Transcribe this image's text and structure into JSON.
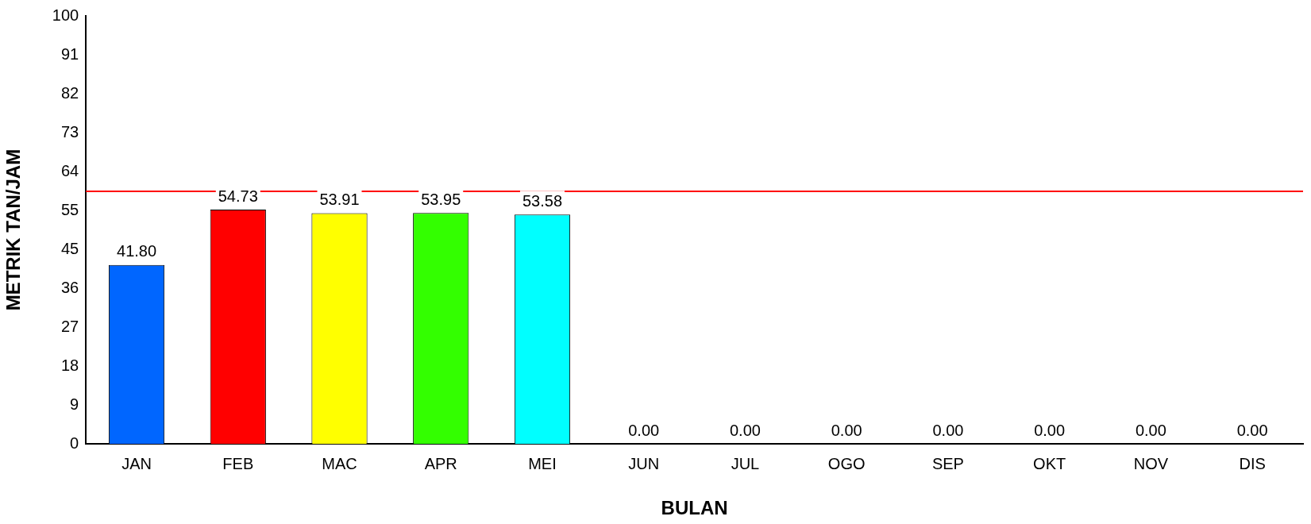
{
  "chart_data": {
    "type": "bar",
    "xlabel": "BULAN",
    "ylabel": "METRIK TAN/JAM",
    "categories": [
      "JAN",
      "FEB",
      "MAC",
      "APR",
      "MEI",
      "JUN",
      "JUL",
      "OGO",
      "SEP",
      "OKT",
      "NOV",
      "DIS"
    ],
    "values": [
      41.8,
      54.73,
      53.91,
      53.95,
      53.58,
      0,
      0,
      0,
      0,
      0,
      0,
      0
    ],
    "value_labels": [
      "41.80",
      "54.73",
      "53.91",
      "53.95",
      "53.58",
      "0.00",
      "0.00",
      "0.00",
      "0.00",
      "0.00",
      "0.00",
      "0.00"
    ],
    "colors": [
      "#0066ff",
      "#ff0000",
      "#ffff00",
      "#33ff00",
      "#00ffff",
      "#990099",
      "#663300",
      "#006600",
      "#000066",
      "#808080",
      "#004d4d",
      "#000000"
    ],
    "ylim": [
      0,
      100
    ],
    "yticks": [
      0,
      {
        "value": 9.09,
        "label": "9"
      },
      {
        "value": 18.18,
        "label": "18"
      },
      {
        "value": 27.27,
        "label": "27"
      },
      {
        "value": 36.36,
        "label": "36"
      },
      {
        "value": 45.45,
        "label": "45"
      },
      {
        "value": 54.55,
        "label": "55"
      },
      {
        "value": 63.64,
        "label": "64"
      },
      {
        "value": 72.73,
        "label": "73"
      },
      {
        "value": 81.82,
        "label": "82"
      },
      {
        "value": 90.91,
        "label": "91"
      },
      100
    ],
    "ref_lines": [
      {
        "axis": "y",
        "value": 59,
        "color": "#ff0000"
      }
    ],
    "grid": false,
    "legend": false
  }
}
